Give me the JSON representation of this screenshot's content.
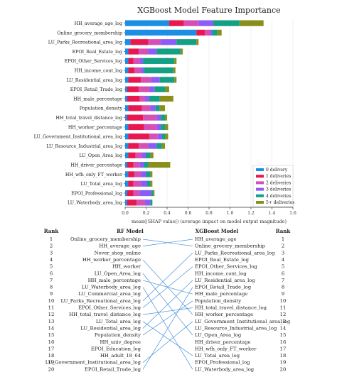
{
  "chart_data": [
    {
      "type": "bar",
      "title": "XGBoost Model Feature Importance",
      "xlabel": "mean(|SHAP value|) (average impact on model output magnitude)",
      "ylabel": "",
      "xlim": [
        0.0,
        1.6
      ],
      "xticks": [
        "0.0",
        "0.2",
        "0.4",
        "0.6",
        "0.8",
        "1.0",
        "1.2",
        "1.4",
        "1.6"
      ],
      "grid": false,
      "legend_position": "bottom-right",
      "stacked": true,
      "orientation": "horizontal",
      "categories": [
        "HH_average_age_log",
        "Online_grocery_membership",
        "LU_Parks_Recreational_area_log",
        "EPOI_Real_Estate_log",
        "EPOI_Other_Services_log",
        "HH_income_cont_log",
        "LU_Residential_area_log",
        "EPOI_Retail_Trade_log",
        "HH_male_percentage",
        "Population_density",
        "HH_total_travel_distance_log",
        "HH_worker_percentage",
        "LU_Government_Institutional_area_log",
        "LU_Resource_Industrial_area_log",
        "LU_Open_Area_log",
        "HH_driver_percentage",
        "HH_wfh_only_FT_worker",
        "LU_Total_area_log",
        "EPOI_Professional_log",
        "LU_Waterbody_area_log"
      ],
      "series": [
        {
          "name": "0 delivery",
          "color": "#1a8fe3",
          "values": [
            0.42,
            0.68,
            0.05,
            0.03,
            0.03,
            0.03,
            0.03,
            0.02,
            0.02,
            0.03,
            0.02,
            0.03,
            0.03,
            0.03,
            0.03,
            0.02,
            0.03,
            0.03,
            0.02,
            0.02
          ]
        },
        {
          "name": "1 deliveries",
          "color": "#e8174f",
          "values": [
            0.14,
            0.08,
            0.17,
            0.1,
            0.05,
            0.06,
            0.12,
            0.11,
            0.12,
            0.13,
            0.15,
            0.15,
            0.2,
            0.1,
            0.07,
            0.06,
            0.06,
            0.05,
            0.06,
            0.09
          ]
        },
        {
          "name": "2 deliveries",
          "color": "#d64fb5",
          "values": [
            0.14,
            0.05,
            0.12,
            0.09,
            0.06,
            0.06,
            0.1,
            0.1,
            0.05,
            0.08,
            0.13,
            0.12,
            0.08,
            0.09,
            0.06,
            0.06,
            0.06,
            0.07,
            0.06,
            0.08
          ]
        },
        {
          "name": "3 deliveries",
          "color": "#8b5cf6",
          "values": [
            0.14,
            0.02,
            0.15,
            0.08,
            0.03,
            0.03,
            0.08,
            0.05,
            0.04,
            0.05,
            0.04,
            0.04,
            0.04,
            0.08,
            0.04,
            0.04,
            0.05,
            0.06,
            0.11,
            0.05
          ]
        },
        {
          "name": "4 deliveries",
          "color": "#14a085",
          "values": [
            0.25,
            0.05,
            0.19,
            0.23,
            0.3,
            0.28,
            0.14,
            0.1,
            0.1,
            0.04,
            0.04,
            0.04,
            0.03,
            0.05,
            0.04,
            0.04,
            0.04,
            0.03,
            0.02,
            0.02
          ]
        },
        {
          "name": "5+ deliveries",
          "color": "#8a8f1c",
          "values": [
            0.23,
            0.04,
            0.02,
            0.02,
            0.02,
            0.02,
            0.02,
            0.04,
            0.13,
            0.05,
            0.02,
            0.03,
            0.03,
            0.03,
            0.03,
            0.21,
            0.02,
            0.02,
            0.01,
            0.0
          ]
        }
      ]
    },
    {
      "type": "table",
      "columns": [
        "Rank",
        "RF Model",
        "XGBoost Model",
        "Rank"
      ],
      "ranks": [
        "1",
        "2",
        "3",
        "4",
        "5",
        "6",
        "7",
        "8",
        "9",
        "10",
        "11",
        "12",
        "13",
        "14",
        "15",
        "16",
        "17",
        "18",
        "19",
        "20"
      ],
      "rf_model": [
        "Online_grocery_membership",
        "HH_average_age",
        "Never_shop_online",
        "HH_worker_percentage",
        "HH_worker",
        "LU_Open_Area_log",
        "HH_male_percentage",
        "LU_Waterbody_area_log",
        "LU_Commercial_area_log",
        "LU_Parks_Recreational_area_log",
        "EPOI_Other_Services_log",
        "HH_total_travel_distance_log",
        "LU_Total_area_log",
        "LU_Residential_area_log",
        "Population_density",
        "HH_univ_degree",
        "EPOI_Education_log",
        "HH_adult_18_64",
        "LU_Government_Institutional_area_log",
        "EPOI_Retail_Trade_log"
      ],
      "xgboost_model": [
        "HH_average_age",
        "Online_grocery_membership",
        "LU_Parks_Recreational_area_log",
        "EPOI_Real_Estate_log",
        "EPOI_Other_Services_log",
        "HH_income_cont_log",
        "LU_Residential_area_log",
        "EPOI_Retail_Trade_log",
        "HH_male_percentage",
        "Population_density",
        "HH_total_travel_distance_log",
        "HH_worker_percentage",
        "LU_Government_Institutional_area_log",
        "LU_Resource_Industrial_area_log",
        "LU_Open_Area_log",
        "HH_driver_percentage",
        "HH_wfh_only_FT_worker",
        "LU_Total_area_log",
        "EPOI_Professional_log",
        "LU_Waterbody_area_log"
      ],
      "links": [
        [
          1,
          2
        ],
        [
          2,
          1
        ],
        [
          4,
          12
        ],
        [
          6,
          15
        ],
        [
          7,
          9
        ],
        [
          8,
          20
        ],
        [
          10,
          3
        ],
        [
          11,
          5
        ],
        [
          12,
          11
        ],
        [
          13,
          18
        ],
        [
          14,
          7
        ],
        [
          15,
          10
        ],
        [
          19,
          13
        ],
        [
          20,
          8
        ]
      ],
      "link_color": "#4a90d9"
    }
  ]
}
